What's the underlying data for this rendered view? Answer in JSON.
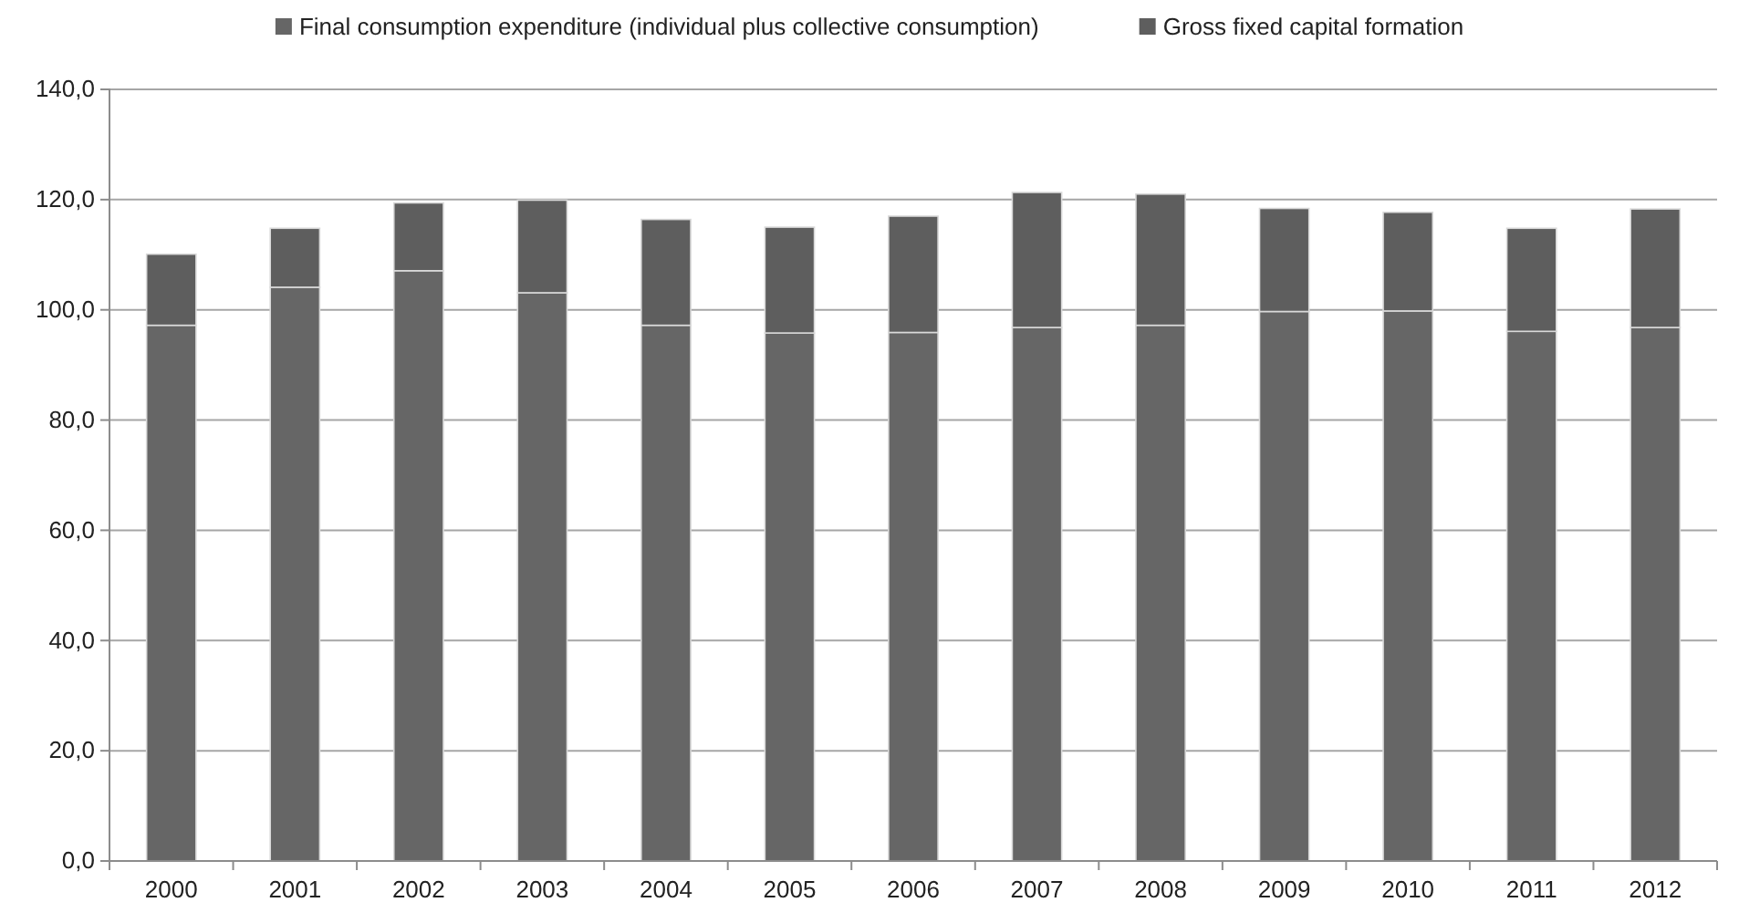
{
  "chart_data": {
    "type": "bar",
    "stacked": true,
    "categories": [
      "2000",
      "2001",
      "2002",
      "2003",
      "2004",
      "2005",
      "2006",
      "2007",
      "2008",
      "2009",
      "2010",
      "2011",
      "2012"
    ],
    "series": [
      {
        "name": "Final consumption expenditure (individual plus collective consumption)",
        "color": "#666666",
        "values": [
          97.2,
          104.1,
          107.1,
          103.1,
          97.2,
          95.8,
          95.9,
          96.8,
          97.2,
          99.7,
          99.8,
          96.1,
          96.8
        ]
      },
      {
        "name": "Gross fixed capital formation",
        "color": "#5e5e5e",
        "values": [
          12.9,
          10.7,
          12.3,
          16.8,
          19.2,
          19.2,
          21.1,
          24.5,
          23.8,
          18.7,
          17.9,
          18.7,
          21.5
        ]
      }
    ],
    "ylim": [
      0,
      140
    ],
    "yticks": [
      {
        "value": 0,
        "label": "0,0"
      },
      {
        "value": 20,
        "label": "20,0"
      },
      {
        "value": 40,
        "label": "40,0"
      },
      {
        "value": 60,
        "label": "60,0"
      },
      {
        "value": 80,
        "label": "80,0"
      },
      {
        "value": 100,
        "label": "100,0"
      },
      {
        "value": 120,
        "label": "120,0"
      },
      {
        "value": 140,
        "label": "140,0"
      }
    ],
    "grid": "y",
    "legend": "top"
  }
}
